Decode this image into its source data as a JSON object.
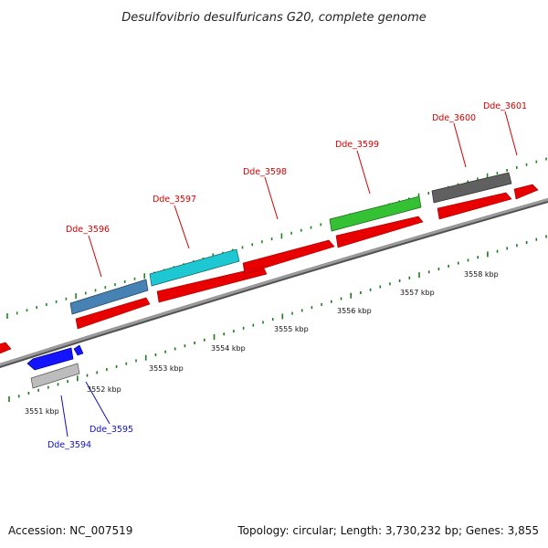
{
  "title": "Desulfovibrio desulfuricans G20, complete genome",
  "footer": {
    "accession": "Accession: NC_007519",
    "summary": "Topology: circular; Length: 3,730,232 bp; Genes: 3,855"
  },
  "colors": {
    "backbone": "#808080",
    "cds_forward": "#ff0000",
    "cds_reverse": "#0000ff",
    "upper_dots": "#1a8a1a",
    "lower_dots": "#1a7a1a"
  },
  "ticks": [
    {
      "label": "3551 kbp"
    },
    {
      "label": "3552 kbp"
    },
    {
      "label": "3553 kbp"
    },
    {
      "label": "3554 kbp"
    },
    {
      "label": "3555 kbp"
    },
    {
      "label": "3556 kbp"
    },
    {
      "label": "3557 kbp"
    },
    {
      "label": "3558 kbp"
    }
  ],
  "genes": [
    {
      "name": "Dde_3594",
      "strand": "reverse",
      "color": "#bcbcbc"
    },
    {
      "name": "Dde_3595",
      "strand": "reverse",
      "color": "#1414ff"
    },
    {
      "name": "Dde_3596",
      "strand": "forward",
      "color": "#4682b4"
    },
    {
      "name": "Dde_3597",
      "strand": "forward",
      "color": "#1ec8d2"
    },
    {
      "name": "Dde_3598",
      "strand": "forward",
      "color": "#ee1111"
    },
    {
      "name": "Dde_3599",
      "strand": "forward",
      "color": "#34c234"
    },
    {
      "name": "Dde_3600",
      "strand": "forward",
      "color": "#606060"
    },
    {
      "name": "Dde_3601",
      "strand": "forward",
      "color": "#ee1111"
    }
  ]
}
